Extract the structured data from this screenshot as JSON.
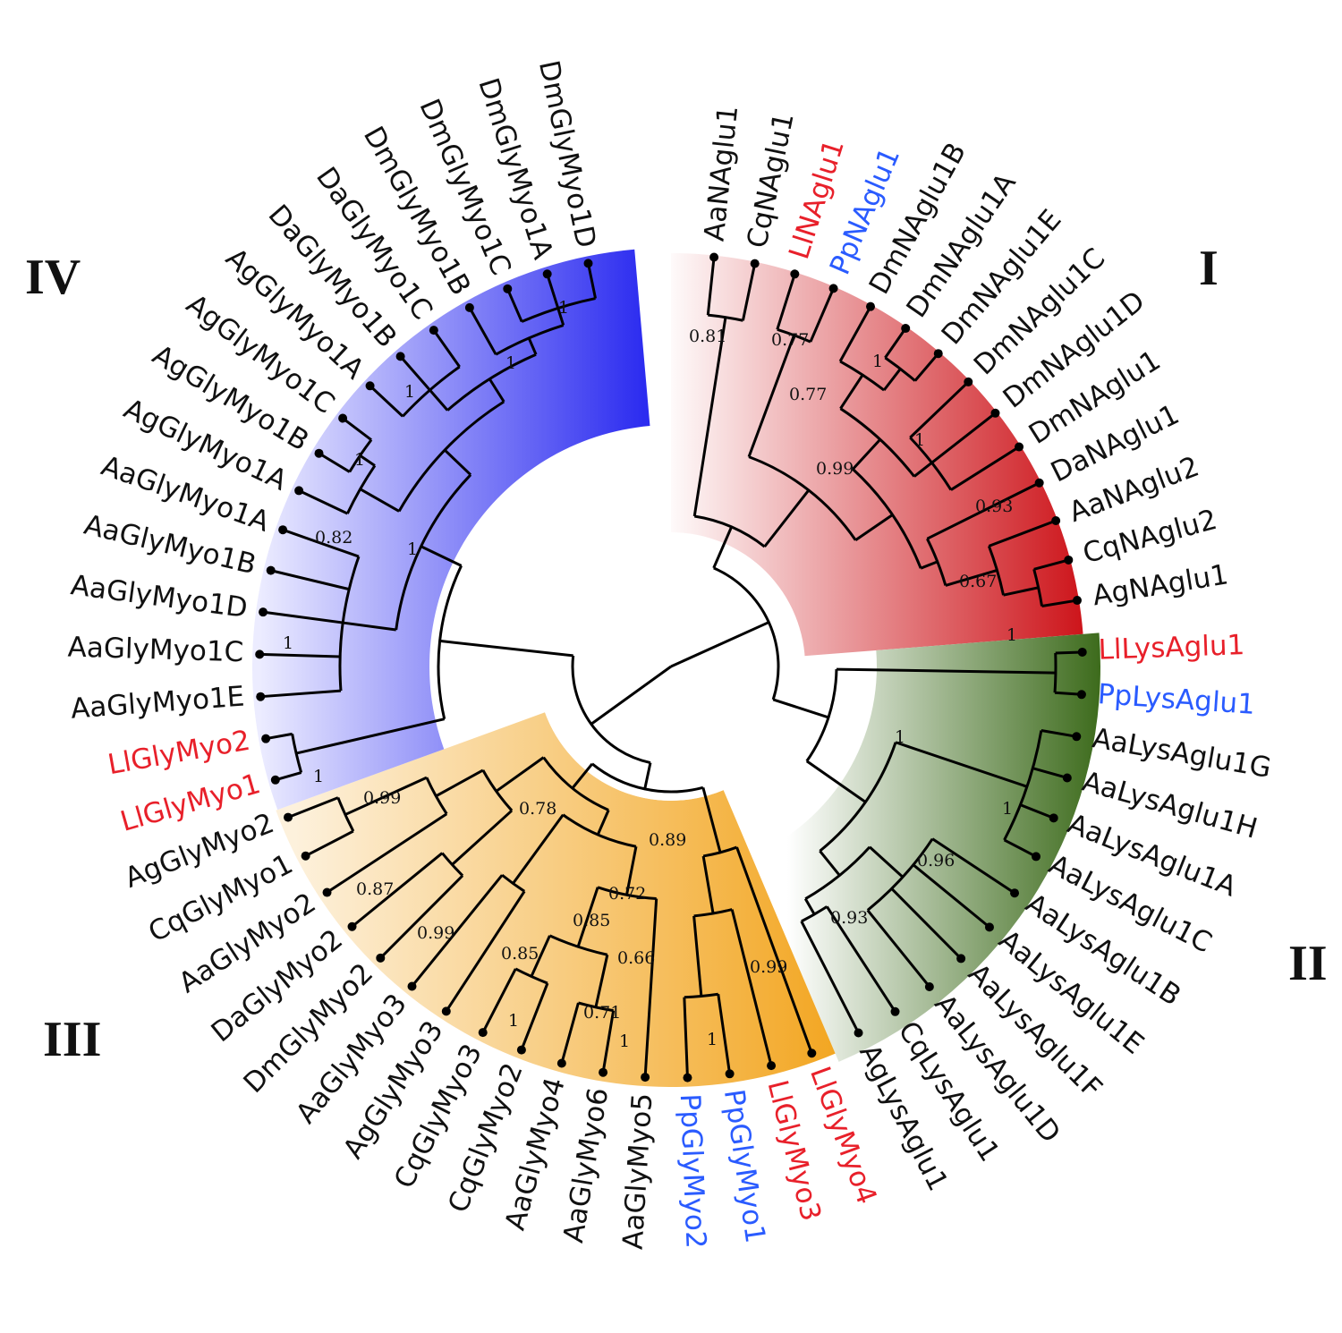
{
  "colors": {
    "default_label": "#111111",
    "red_label": "#e8202a",
    "blue_label": "#2a5bff",
    "clade_I": "#cc1016",
    "clade_II": "#3d6b1c",
    "clade_III": "#f2a31a",
    "clade_IV": "#2c2cf0"
  },
  "clade_labels": {
    "I": "I",
    "II": "II",
    "III": "III",
    "IV": "IV"
  },
  "leaves": [
    {
      "label": "AaNAglu1",
      "color": "default"
    },
    {
      "label": "CqNAglu1",
      "color": "default"
    },
    {
      "label": "LlNAglu1",
      "color": "red"
    },
    {
      "label": "PpNAglu1",
      "color": "blue"
    },
    {
      "label": "DmNAglu1B",
      "color": "default"
    },
    {
      "label": "DmNAglu1A",
      "color": "default"
    },
    {
      "label": "DmNAglu1E",
      "color": "default"
    },
    {
      "label": "DmNAglu1C",
      "color": "default"
    },
    {
      "label": "DmNAglu1D",
      "color": "default"
    },
    {
      "label": "DmNAglu1",
      "color": "default"
    },
    {
      "label": "DaNAglu1",
      "color": "default"
    },
    {
      "label": "AaNAglu2",
      "color": "default"
    },
    {
      "label": "CqNAglu2",
      "color": "default"
    },
    {
      "label": "AgNAglu1",
      "color": "default"
    },
    {
      "label": "LlLysAglu1",
      "color": "red"
    },
    {
      "label": "PpLysAglu1",
      "color": "blue"
    },
    {
      "label": "AaLysAglu1G",
      "color": "default"
    },
    {
      "label": "AaLysAglu1H",
      "color": "default"
    },
    {
      "label": "AaLysAglu1A",
      "color": "default"
    },
    {
      "label": "AaLysAglu1C",
      "color": "default"
    },
    {
      "label": "AaLysAglu1B",
      "color": "default"
    },
    {
      "label": "AaLysAglu1E",
      "color": "default"
    },
    {
      "label": "AaLysAglu1F",
      "color": "default"
    },
    {
      "label": "AaLysAglu1D",
      "color": "default"
    },
    {
      "label": "CqLysAglu1",
      "color": "default"
    },
    {
      "label": "AgLysAglu1",
      "color": "default"
    },
    {
      "label": "LlGlyMyo4",
      "color": "red"
    },
    {
      "label": "LlGlyMyo3",
      "color": "red"
    },
    {
      "label": "PpGlyMyo1",
      "color": "blue"
    },
    {
      "label": "PpGlyMyo2",
      "color": "blue"
    },
    {
      "label": "AaGlyMyo5",
      "color": "default"
    },
    {
      "label": "AaGlyMyo6",
      "color": "default"
    },
    {
      "label": "AaGlyMyo4",
      "color": "default"
    },
    {
      "label": "CqGlyMyo2",
      "color": "default"
    },
    {
      "label": "CqGlyMyo3",
      "color": "default"
    },
    {
      "label": "AgGlyMyo3",
      "color": "default"
    },
    {
      "label": "AaGlyMyo3",
      "color": "default"
    },
    {
      "label": "DmGlyMyo2",
      "color": "default"
    },
    {
      "label": "DaGlyMyo2",
      "color": "default"
    },
    {
      "label": "AaGlyMyo2",
      "color": "default"
    },
    {
      "label": "CqGlyMyo1",
      "color": "default"
    },
    {
      "label": "AgGlyMyo2",
      "color": "default"
    },
    {
      "label": "LlGlyMyo1",
      "color": "red"
    },
    {
      "label": "LlGlyMyo2",
      "color": "red"
    },
    {
      "label": "AaGlyMyo1E",
      "color": "default"
    },
    {
      "label": "AaGlyMyo1C",
      "color": "default"
    },
    {
      "label": "AaGlyMyo1D",
      "color": "default"
    },
    {
      "label": "AaGlyMyo1B",
      "color": "default"
    },
    {
      "label": "AaGlyMyo1A",
      "color": "default"
    },
    {
      "label": "AgGlyMyo1A",
      "color": "default"
    },
    {
      "label": "AgGlyMyo1B",
      "color": "default"
    },
    {
      "label": "AgGlyMyo1C",
      "color": "default"
    },
    {
      "label": "AgGlyMyo1A",
      "color": "default"
    },
    {
      "label": "DaGlyMyo1B",
      "color": "default"
    },
    {
      "label": "DaGlyMyo1C",
      "color": "default"
    },
    {
      "label": "DmGlyMyo1B",
      "color": "default"
    },
    {
      "label": "DmGlyMyo1C",
      "color": "default"
    },
    {
      "label": "DmGlyMyo1A",
      "color": "default"
    },
    {
      "label": "DmGlyMyo1D",
      "color": "default"
    }
  ],
  "support_values": [
    {
      "value": "0.81",
      "clade": "I"
    },
    {
      "value": "0.77",
      "clade": "I"
    },
    {
      "value": "1",
      "clade": "I"
    },
    {
      "value": "0.77",
      "clade": "I"
    },
    {
      "value": "1",
      "clade": "I"
    },
    {
      "value": "0.99",
      "clade": "I"
    },
    {
      "value": "0.93",
      "clade": "I"
    },
    {
      "value": "0.67",
      "clade": "I"
    },
    {
      "value": "1",
      "clade": "II"
    },
    {
      "value": "1",
      "clade": "II"
    },
    {
      "value": "1",
      "clade": "II"
    },
    {
      "value": "0.96",
      "clade": "II"
    },
    {
      "value": "0.93",
      "clade": "II"
    },
    {
      "value": "0.89",
      "clade": "III"
    },
    {
      "value": "0.78",
      "clade": "III"
    },
    {
      "value": "0.72",
      "clade": "III"
    },
    {
      "value": "0.85",
      "clade": "III"
    },
    {
      "value": "0.66",
      "clade": "III"
    },
    {
      "value": "0.99",
      "clade": "III"
    },
    {
      "value": "0.85",
      "clade": "III"
    },
    {
      "value": "0.71",
      "clade": "III"
    },
    {
      "value": "1",
      "clade": "III"
    },
    {
      "value": "1",
      "clade": "III"
    },
    {
      "value": "1",
      "clade": "III"
    },
    {
      "value": "0.99",
      "clade": "III"
    },
    {
      "value": "0.87",
      "clade": "III"
    },
    {
      "value": "0.99",
      "clade": "III"
    },
    {
      "value": "1",
      "clade": "IV"
    },
    {
      "value": "1",
      "clade": "IV"
    },
    {
      "value": "1",
      "clade": "IV"
    },
    {
      "value": "1",
      "clade": "IV"
    },
    {
      "value": "1",
      "clade": "IV"
    },
    {
      "value": "0.82",
      "clade": "IV"
    },
    {
      "value": "1",
      "clade": "IV"
    },
    {
      "value": "1",
      "clade": "IV"
    }
  ]
}
